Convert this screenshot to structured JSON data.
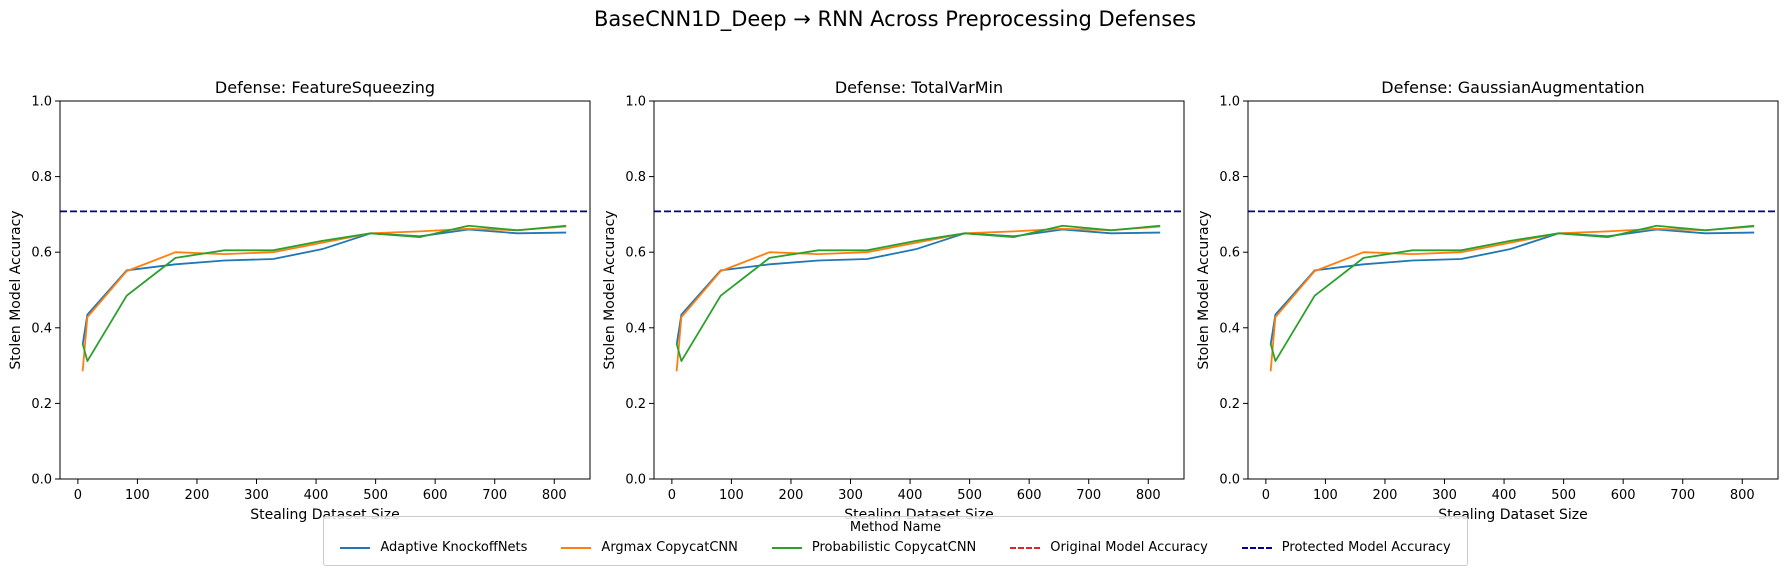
{
  "figure": {
    "suptitle": "BaseCNN1D_Deep → RNN Across Preprocessing Defenses"
  },
  "legend": {
    "title": "Method Name",
    "placement": "lower-center",
    "items": [
      {
        "label": "Adaptive KnockoffNets",
        "color": "#1f77b4",
        "style": "solid"
      },
      {
        "label": "Argmax CopycatCNN",
        "color": "#ff7f0e",
        "style": "solid"
      },
      {
        "label": "Probabilistic CopycatCNN",
        "color": "#2ca02c",
        "style": "solid"
      },
      {
        "label": "Original Model Accuracy",
        "color": "#d62728",
        "style": "dashed"
      },
      {
        "label": "Protected Model Accuracy",
        "color": "#00008b",
        "style": "dashed"
      }
    ]
  },
  "chart_data": [
    {
      "type": "line",
      "title": "Defense: FeatureSqueezing",
      "xlabel": "Stealing Dataset Size",
      "ylabel": "Stolen Model Accuracy",
      "xlim": [
        -30,
        860
      ],
      "ylim": [
        0,
        1
      ],
      "xticks": [
        0,
        100,
        200,
        300,
        400,
        500,
        600,
        700,
        800
      ],
      "yticks": [
        0.0,
        0.2,
        0.4,
        0.6,
        0.8,
        1.0
      ],
      "grid": false,
      "hlines": [
        {
          "name": "Protected Model Accuracy",
          "y": 0.708,
          "color": "#00008b"
        }
      ],
      "series": [
        {
          "name": "Adaptive KnockoffNets",
          "color": "#1f77b4",
          "x": [
            8,
            16,
            82,
            164,
            246,
            328,
            410,
            492,
            574,
            656,
            738,
            820
          ],
          "y": [
            0.355,
            0.435,
            0.552,
            0.568,
            0.578,
            0.582,
            0.608,
            0.65,
            0.642,
            0.66,
            0.65,
            0.652
          ]
        },
        {
          "name": "Argmax CopycatCNN",
          "color": "#ff7f0e",
          "x": [
            8,
            16,
            82,
            164,
            246,
            328,
            410,
            492,
            574,
            656,
            738,
            820
          ],
          "y": [
            0.285,
            0.428,
            0.55,
            0.6,
            0.595,
            0.6,
            0.625,
            0.65,
            0.655,
            0.662,
            0.658,
            0.668
          ]
        },
        {
          "name": "Probabilistic CopycatCNN",
          "color": "#2ca02c",
          "x": [
            8,
            16,
            82,
            164,
            246,
            328,
            410,
            492,
            574,
            656,
            738,
            820
          ],
          "y": [
            0.358,
            0.312,
            0.485,
            0.585,
            0.605,
            0.605,
            0.63,
            0.65,
            0.64,
            0.67,
            0.658,
            0.67
          ]
        }
      ]
    },
    {
      "type": "line",
      "title": "Defense: TotalVarMin",
      "xlabel": "Stealing Dataset Size",
      "ylabel": "Stolen Model Accuracy",
      "xlim": [
        -30,
        860
      ],
      "ylim": [
        0,
        1
      ],
      "xticks": [
        0,
        100,
        200,
        300,
        400,
        500,
        600,
        700,
        800
      ],
      "yticks": [
        0.0,
        0.2,
        0.4,
        0.6,
        0.8,
        1.0
      ],
      "grid": false,
      "hlines": [
        {
          "name": "Protected Model Accuracy",
          "y": 0.708,
          "color": "#00008b"
        }
      ],
      "series": [
        {
          "name": "Adaptive KnockoffNets",
          "color": "#1f77b4",
          "x": [
            8,
            16,
            82,
            164,
            246,
            328,
            410,
            492,
            574,
            656,
            738,
            820
          ],
          "y": [
            0.355,
            0.435,
            0.552,
            0.568,
            0.578,
            0.582,
            0.608,
            0.65,
            0.642,
            0.66,
            0.65,
            0.652
          ]
        },
        {
          "name": "Argmax CopycatCNN",
          "color": "#ff7f0e",
          "x": [
            8,
            16,
            82,
            164,
            246,
            328,
            410,
            492,
            574,
            656,
            738,
            820
          ],
          "y": [
            0.285,
            0.428,
            0.55,
            0.6,
            0.595,
            0.6,
            0.625,
            0.65,
            0.655,
            0.662,
            0.658,
            0.668
          ]
        },
        {
          "name": "Probabilistic CopycatCNN",
          "color": "#2ca02c",
          "x": [
            8,
            16,
            82,
            164,
            246,
            328,
            410,
            492,
            574,
            656,
            738,
            820
          ],
          "y": [
            0.358,
            0.312,
            0.485,
            0.585,
            0.605,
            0.605,
            0.63,
            0.65,
            0.64,
            0.67,
            0.658,
            0.67
          ]
        }
      ]
    },
    {
      "type": "line",
      "title": "Defense: GaussianAugmentation",
      "xlabel": "Stealing Dataset Size",
      "ylabel": "Stolen Model Accuracy",
      "xlim": [
        -30,
        860
      ],
      "ylim": [
        0,
        1
      ],
      "xticks": [
        0,
        100,
        200,
        300,
        400,
        500,
        600,
        700,
        800
      ],
      "yticks": [
        0.0,
        0.2,
        0.4,
        0.6,
        0.8,
        1.0
      ],
      "grid": false,
      "hlines": [
        {
          "name": "Protected Model Accuracy",
          "y": 0.708,
          "color": "#00008b"
        }
      ],
      "series": [
        {
          "name": "Adaptive KnockoffNets",
          "color": "#1f77b4",
          "x": [
            8,
            16,
            82,
            164,
            246,
            328,
            410,
            492,
            574,
            656,
            738,
            820
          ],
          "y": [
            0.355,
            0.435,
            0.552,
            0.568,
            0.578,
            0.582,
            0.608,
            0.65,
            0.642,
            0.66,
            0.65,
            0.652
          ]
        },
        {
          "name": "Argmax CopycatCNN",
          "color": "#ff7f0e",
          "x": [
            8,
            16,
            82,
            164,
            246,
            328,
            410,
            492,
            574,
            656,
            738,
            820
          ],
          "y": [
            0.285,
            0.428,
            0.55,
            0.6,
            0.595,
            0.6,
            0.625,
            0.65,
            0.655,
            0.662,
            0.658,
            0.668
          ]
        },
        {
          "name": "Probabilistic CopycatCNN",
          "color": "#2ca02c",
          "x": [
            8,
            16,
            82,
            164,
            246,
            328,
            410,
            492,
            574,
            656,
            738,
            820
          ],
          "y": [
            0.358,
            0.312,
            0.485,
            0.585,
            0.605,
            0.605,
            0.63,
            0.65,
            0.64,
            0.67,
            0.658,
            0.67
          ]
        }
      ]
    }
  ]
}
